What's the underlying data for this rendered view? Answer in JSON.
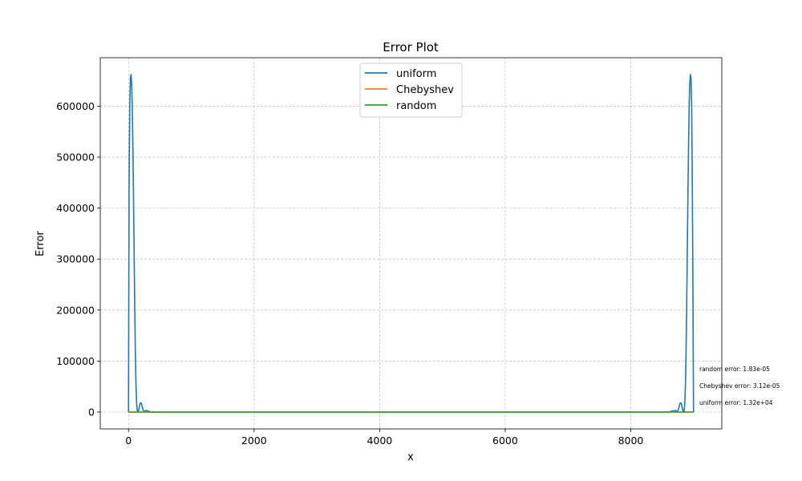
{
  "chart_data": {
    "type": "line",
    "title": "Error Plot",
    "xlabel": "x",
    "ylabel": "Error",
    "xlim": [
      -450,
      9450
    ],
    "ylim": [
      -33000,
      695000
    ],
    "xticks": [
      0,
      2000,
      4000,
      6000,
      8000
    ],
    "xtick_labels": [
      "0",
      "2000",
      "4000",
      "6000",
      "8000"
    ],
    "yticks": [
      0,
      100000,
      200000,
      300000,
      400000,
      500000,
      600000
    ],
    "ytick_labels": [
      "0",
      "100000",
      "200000",
      "300000",
      "400000",
      "500000",
      "600000"
    ],
    "grid": true,
    "legend_position": "top-center",
    "series": [
      {
        "name": "uniform",
        "color": "#1f77b4",
        "x": [
          0,
          5,
          10,
          20,
          30,
          40,
          50,
          60,
          70,
          80,
          90,
          100,
          110,
          120,
          130,
          140,
          150,
          160,
          170,
          180,
          190,
          200,
          210,
          220,
          230,
          240,
          250,
          260,
          270,
          280,
          290,
          300,
          320,
          350,
          380,
          420,
          470,
          520,
          600,
          700,
          8300,
          8400,
          8480,
          8530,
          8580,
          8620,
          8650,
          8680,
          8700,
          8710,
          8720,
          8730,
          8740,
          8750,
          8760,
          8770,
          8780,
          8790,
          8800,
          8810,
          8820,
          8830,
          8840,
          8850,
          8860,
          8870,
          8880,
          8890,
          8900,
          8910,
          8920,
          8930,
          8940,
          8950,
          8960,
          8970,
          8980,
          8990,
          8995,
          9000
        ],
        "y": [
          0,
          250000,
          450000,
          600000,
          655000,
          662000,
          645000,
          600000,
          520000,
          420000,
          310000,
          200000,
          110000,
          50000,
          15000,
          2000,
          0,
          3000,
          9000,
          15000,
          18000,
          18000,
          15000,
          10000,
          6000,
          2500,
          800,
          1500,
          2500,
          3000,
          2800,
          2400,
          1500,
          600,
          200,
          50,
          10,
          2,
          0,
          0,
          0,
          0,
          10,
          50,
          200,
          600,
          1500,
          2400,
          2800,
          3000,
          2500,
          1500,
          800,
          2500,
          6000,
          10000,
          15000,
          18000,
          18000,
          15000,
          9000,
          3000,
          0,
          2000,
          15000,
          50000,
          110000,
          200000,
          310000,
          420000,
          520000,
          600000,
          645000,
          662000,
          655000,
          600000,
          450000,
          250000,
          100000,
          0
        ]
      },
      {
        "name": "Chebyshev",
        "color": "#ff7f0e",
        "x": [
          0,
          9000
        ],
        "y": [
          0,
          0
        ]
      },
      {
        "name": "random",
        "color": "#2ca02c",
        "x": [
          0,
          9000
        ],
        "y": [
          0,
          0
        ]
      }
    ],
    "annotations": [
      "random error: 1.83e-05",
      "Chebyshev error: 3.12e-05",
      "uniform error: 1.32e+04"
    ]
  }
}
